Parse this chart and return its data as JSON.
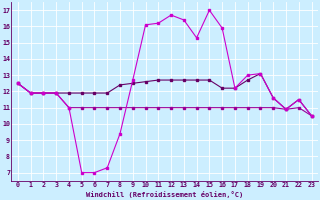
{
  "xlabel": "Windchill (Refroidissement éolien,°C)",
  "background_color": "#cceeff",
  "grid_color": "#ffffff",
  "line_color1": "#cc00cc",
  "line_color2": "#660066",
  "line_color3": "#990099",
  "ylim": [
    6.5,
    17.5
  ],
  "xlim": [
    -0.5,
    23.5
  ],
  "yticks": [
    7,
    8,
    9,
    10,
    11,
    12,
    13,
    14,
    15,
    16,
    17
  ],
  "xticks": [
    0,
    1,
    2,
    3,
    4,
    5,
    6,
    7,
    8,
    9,
    10,
    11,
    12,
    13,
    14,
    15,
    16,
    17,
    18,
    19,
    20,
    21,
    22,
    23
  ],
  "series1_x": [
    0,
    1,
    2,
    3,
    4,
    5,
    6,
    7,
    8,
    9,
    10,
    11,
    12,
    13,
    14,
    15,
    16,
    17,
    18,
    19,
    20,
    21,
    22,
    23
  ],
  "series1_y": [
    12.5,
    11.9,
    11.9,
    11.9,
    11.0,
    7.0,
    7.0,
    7.3,
    9.4,
    12.7,
    16.1,
    16.2,
    16.7,
    16.4,
    15.3,
    17.0,
    15.9,
    12.2,
    13.0,
    13.1,
    11.6,
    10.9,
    11.5,
    10.5
  ],
  "series2_x": [
    0,
    1,
    2,
    3,
    4,
    5,
    6,
    7,
    8,
    9,
    10,
    11,
    12,
    13,
    14,
    15,
    16,
    17,
    18,
    19,
    20,
    21,
    22,
    23
  ],
  "series2_y": [
    12.5,
    11.9,
    11.9,
    11.9,
    11.9,
    11.9,
    11.9,
    11.9,
    12.4,
    12.5,
    12.6,
    12.7,
    12.7,
    12.7,
    12.7,
    12.7,
    12.2,
    12.2,
    12.7,
    13.1,
    11.6,
    10.9,
    11.5,
    10.5
  ],
  "series3_x": [
    0,
    1,
    2,
    3,
    4,
    5,
    6,
    7,
    8,
    9,
    10,
    11,
    12,
    13,
    14,
    15,
    16,
    17,
    18,
    19,
    20,
    21,
    22,
    23
  ],
  "series3_y": [
    12.5,
    11.9,
    11.9,
    11.9,
    11.0,
    11.0,
    11.0,
    11.0,
    11.0,
    11.0,
    11.0,
    11.0,
    11.0,
    11.0,
    11.0,
    11.0,
    11.0,
    11.0,
    11.0,
    11.0,
    11.0,
    10.9,
    11.0,
    10.5
  ],
  "xlabel_fontsize": 5.0,
  "tick_fontsize": 4.8,
  "linewidth": 0.8,
  "markersize": 1.5
}
